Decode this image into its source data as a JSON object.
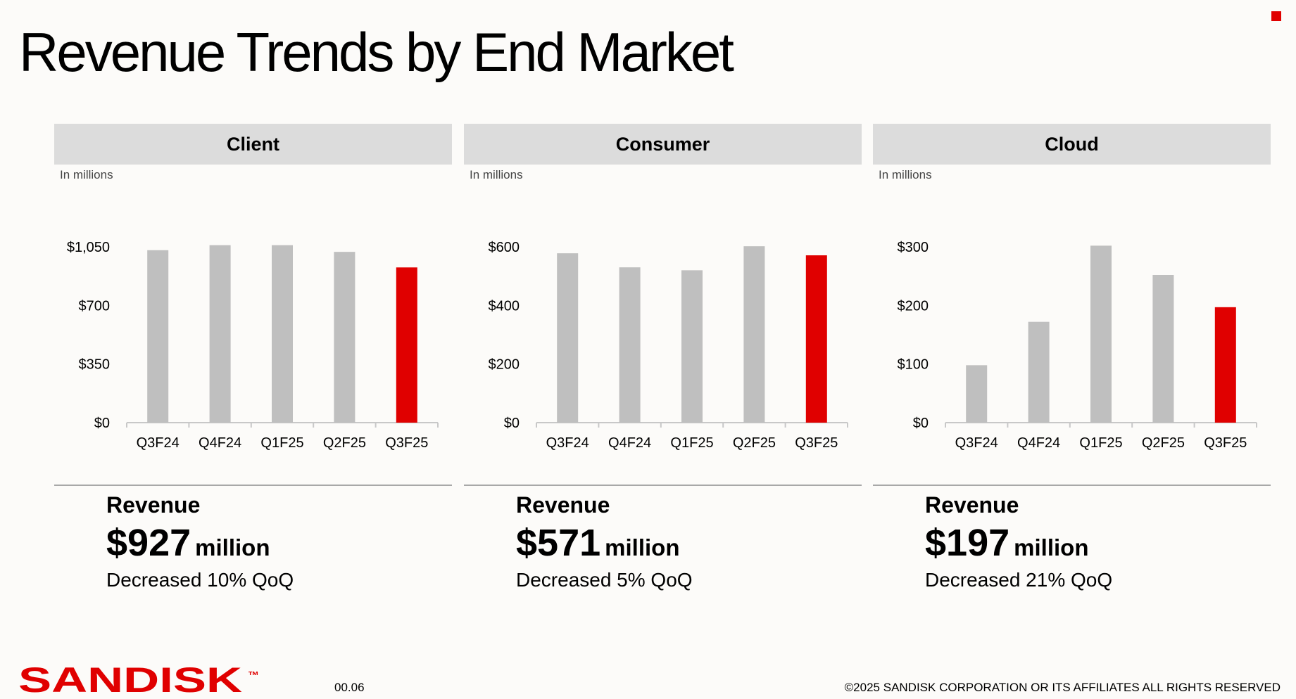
{
  "title": "Revenue Trends by End Market",
  "colors": {
    "accent": "#e00000",
    "bar": "#bfbfbf",
    "header_bg": "#dcdcdc",
    "axis": "#c8c8c8"
  },
  "panels": [
    {
      "header": "Client",
      "unit_note": "In millions",
      "revenue_label": "Revenue",
      "revenue_amount": "$927",
      "revenue_unit": "million",
      "change": "Decreased 10% QoQ"
    },
    {
      "header": "Consumer",
      "unit_note": "In millions",
      "revenue_label": "Revenue",
      "revenue_amount": "$571",
      "revenue_unit": "million",
      "change": "Decreased 5% QoQ"
    },
    {
      "header": "Cloud",
      "unit_note": "In millions",
      "revenue_label": "Revenue",
      "revenue_amount": "$197",
      "revenue_unit": "million",
      "change": "Decreased 21% QoQ"
    }
  ],
  "chart_data": [
    {
      "type": "bar",
      "title": "Client",
      "categories": [
        "Q3F24",
        "Q4F24",
        "Q1F25",
        "Q2F25",
        "Q3F25"
      ],
      "values": [
        1030,
        1060,
        1060,
        1020,
        927
      ],
      "yticks": [
        "$0",
        "$350",
        "$700",
        "$1,050"
      ],
      "ytick_values": [
        0,
        350,
        700,
        1050
      ],
      "ylim": [
        0,
        1050
      ],
      "highlight_index": 4,
      "grid": false,
      "legend": "none"
    },
    {
      "type": "bar",
      "title": "Consumer",
      "categories": [
        "Q3F24",
        "Q4F24",
        "Q1F25",
        "Q2F25",
        "Q3F25"
      ],
      "values": [
        578,
        530,
        520,
        602,
        571
      ],
      "yticks": [
        "$0",
        "$200",
        "$400",
        "$600"
      ],
      "ytick_values": [
        0,
        200,
        400,
        600
      ],
      "ylim": [
        0,
        600
      ],
      "highlight_index": 4,
      "grid": false,
      "legend": "none"
    },
    {
      "type": "bar",
      "title": "Cloud",
      "categories": [
        "Q3F24",
        "Q4F24",
        "Q1F25",
        "Q2F25",
        "Q3F25"
      ],
      "values": [
        98,
        172,
        302,
        252,
        197
      ],
      "yticks": [
        "$0",
        "$100",
        "$200",
        "$300"
      ],
      "ytick_values": [
        0,
        100,
        200,
        300
      ],
      "ylim": [
        0,
        300
      ],
      "highlight_index": 4,
      "grid": false,
      "legend": "none"
    }
  ],
  "footer": {
    "logo_text": "SANDISK",
    "trademark": "™",
    "page_number": "00.06",
    "copyright": "©2025 SANDISK CORPORATION OR ITS AFFILIATES ALL RIGHTS RESERVED"
  }
}
